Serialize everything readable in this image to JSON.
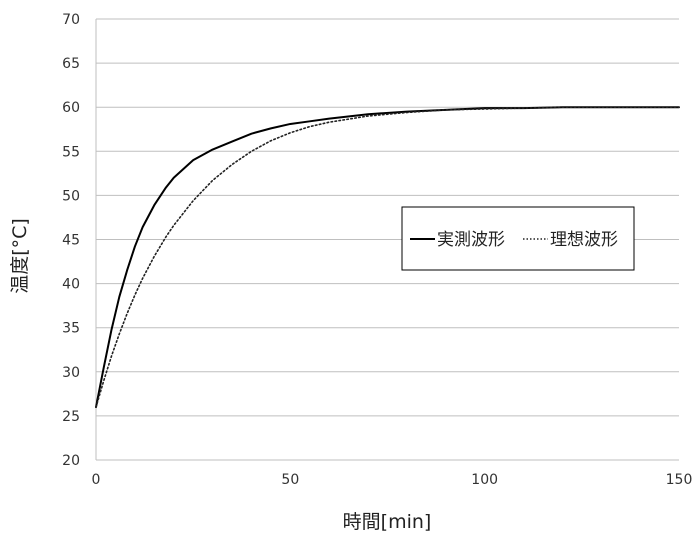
{
  "chart_data": {
    "type": "line",
    "title": "",
    "xlabel": "時間[min]",
    "ylabel": "温度[°C]",
    "xlim": [
      0,
      150
    ],
    "ylim": [
      20,
      70
    ],
    "x_ticks": [
      0,
      50,
      100,
      150
    ],
    "y_ticks": [
      20,
      25,
      30,
      35,
      40,
      45,
      50,
      55,
      60,
      65,
      70
    ],
    "grid": "horizontal",
    "legend_position": "center-right",
    "series": [
      {
        "name": "実測波形",
        "style": "solid",
        "color": "#000000",
        "x": [
          0,
          2,
          4,
          6,
          8,
          10,
          12,
          15,
          18,
          20,
          25,
          30,
          35,
          40,
          45,
          50,
          55,
          60,
          70,
          80,
          90,
          100,
          110,
          120,
          130,
          140,
          150
        ],
        "y": [
          26.0,
          30.5,
          34.8,
          38.5,
          41.5,
          44.2,
          46.4,
          48.9,
          50.9,
          52.0,
          54.0,
          55.2,
          56.1,
          57.0,
          57.6,
          58.1,
          58.4,
          58.7,
          59.2,
          59.5,
          59.7,
          59.9,
          59.9,
          60.0,
          60.0,
          60.0,
          60.0
        ]
      },
      {
        "name": "理想波形",
        "style": "dotted",
        "color": "#222222",
        "x": [
          0,
          2,
          4,
          6,
          8,
          10,
          12,
          15,
          18,
          20,
          25,
          30,
          35,
          40,
          45,
          50,
          55,
          60,
          70,
          80,
          90,
          100,
          110,
          120,
          130,
          140,
          150
        ],
        "y": [
          26.0,
          29.0,
          31.8,
          34.3,
          36.6,
          38.7,
          40.6,
          43.1,
          45.3,
          46.6,
          49.4,
          51.7,
          53.5,
          55.0,
          56.2,
          57.1,
          57.8,
          58.3,
          59.0,
          59.4,
          59.7,
          59.8,
          59.9,
          60.0,
          60.0,
          60.0,
          60.0
        ]
      }
    ]
  }
}
